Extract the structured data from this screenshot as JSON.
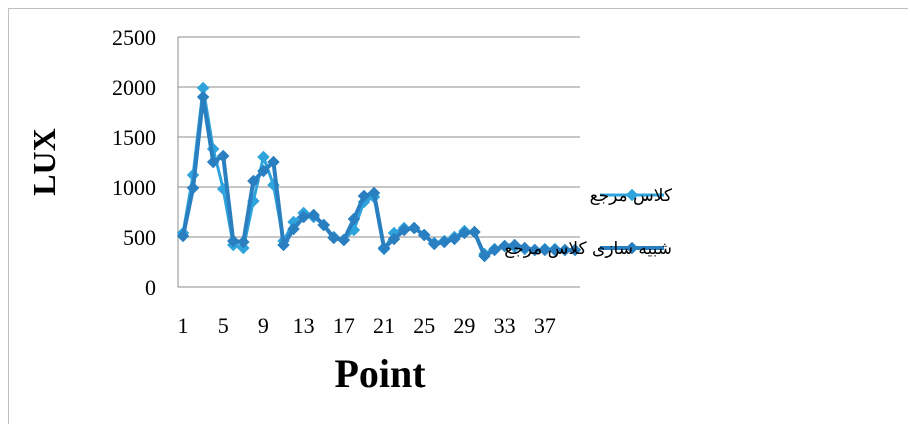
{
  "chart_data": {
    "type": "line",
    "xlabel": "Point",
    "ylabel": "LUX",
    "ylim": [
      0,
      2500
    ],
    "yticks": [
      0,
      500,
      1000,
      1500,
      2000,
      2500
    ],
    "xticks": [
      "1",
      "5",
      "9",
      "13",
      "17",
      "21",
      "25",
      "29",
      "33",
      "37"
    ],
    "x": [
      1,
      2,
      3,
      4,
      5,
      6,
      7,
      8,
      9,
      10,
      11,
      12,
      13,
      14,
      15,
      16,
      17,
      18,
      19,
      20,
      21,
      22,
      23,
      24,
      25,
      26,
      27,
      28,
      29,
      30,
      31,
      32,
      33,
      34,
      35,
      36,
      37,
      38,
      39,
      40
    ],
    "grid": "horizontal",
    "legend_position": "right",
    "series": [
      {
        "name": "کلاس مرجع",
        "color": "#2fa4dc",
        "values": [
          540,
          1120,
          1990,
          1380,
          980,
          420,
          390,
          860,
          1300,
          1020,
          460,
          650,
          740,
          700,
          620,
          500,
          470,
          570,
          850,
          900,
          380,
          540,
          590,
          590,
          520,
          440,
          460,
          500,
          560,
          550,
          330,
          380,
          410,
          400,
          380,
          370,
          380,
          380,
          370,
          370
        ]
      },
      {
        "name": "شبیه سازی کلاس مرجع",
        "color": "#2a7fc1",
        "values": [
          510,
          990,
          1900,
          1250,
          1310,
          460,
          450,
          1060,
          1160,
          1250,
          420,
          580,
          700,
          720,
          620,
          490,
          470,
          680,
          910,
          940,
          390,
          480,
          570,
          590,
          520,
          430,
          450,
          480,
          540,
          550,
          310,
          370,
          410,
          420,
          390,
          370,
          370,
          370,
          370,
          370
        ]
      }
    ]
  }
}
